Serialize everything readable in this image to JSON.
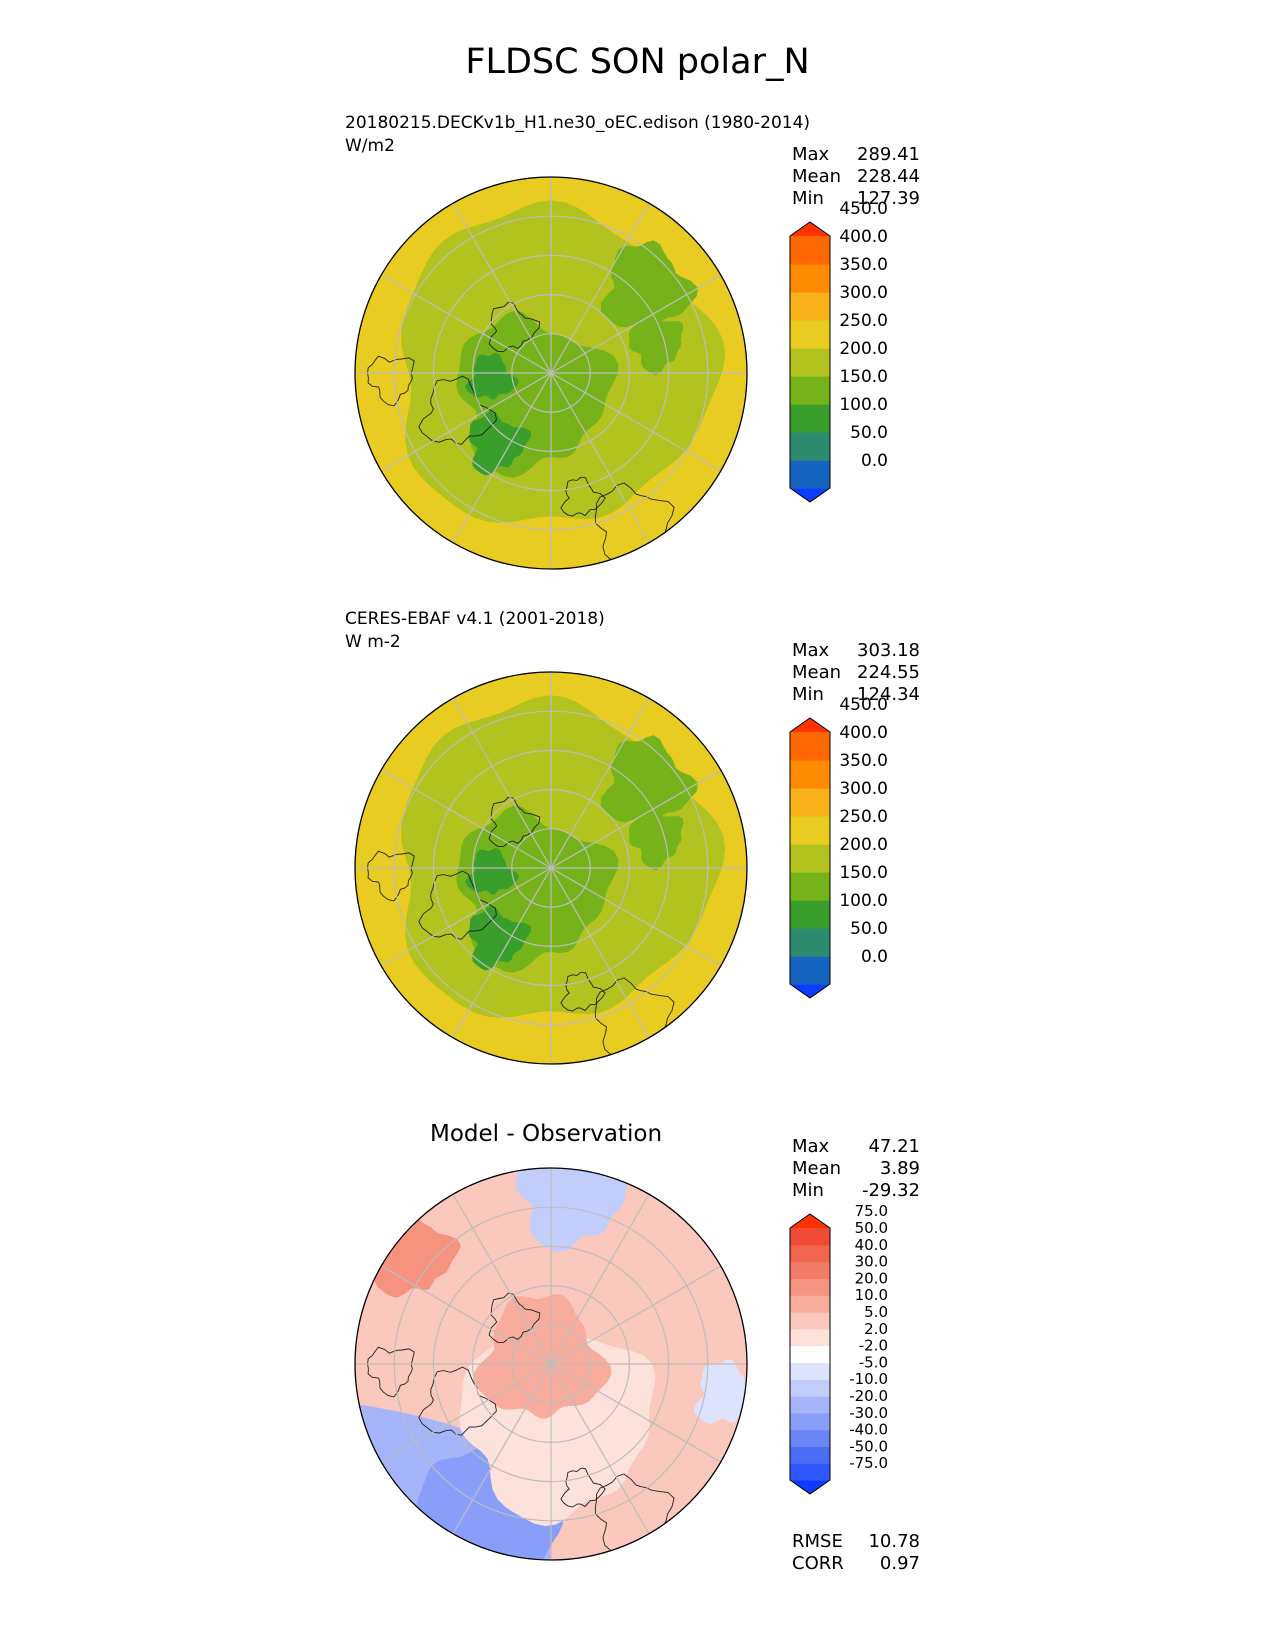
{
  "figure": {
    "title": "FLDSC SON polar_N"
  },
  "colors": {
    "field": [
      "#0a3dff",
      "#1565c0",
      "#2e8b6e",
      "#3a9e2c",
      "#76b21a",
      "#b2c21f",
      "#e8cc22",
      "#f9b21c",
      "#ff8c00",
      "#ff6800",
      "#ff3300"
    ],
    "diff": [
      "#0a3dff",
      "#2f56ff",
      "#4c6ef5",
      "#6a86f5",
      "#889ef8",
      "#a6b5fa",
      "#c3cdfc",
      "#dde3fd",
      "#ffffff",
      "#fde2dc",
      "#fbc8bd",
      "#f8ac9c",
      "#f6937f",
      "#f47b66",
      "#f2654f",
      "#f04b35",
      "#ff3300"
    ]
  },
  "chart_data": [
    {
      "type": "heatmap",
      "name": "model-panel",
      "title": "20180215.DECKv1b_H1.ne30_oEC.edison (1980-2014)",
      "units": "W/m2",
      "stats": {
        "max_label": "Max",
        "max": "289.41",
        "mean_label": "Mean",
        "mean": "228.44",
        "min_label": "Min",
        "min": "127.39"
      },
      "colorbar": {
        "levels": [
          0,
          50,
          100,
          150,
          200,
          250,
          300,
          350,
          400,
          450
        ],
        "tick_labels": [
          "0.0",
          "50.0",
          "100.0",
          "150.0",
          "200.0",
          "250.0",
          "300.0",
          "350.0",
          "400.0",
          "450.0"
        ]
      },
      "projection": "north-polar-stereographic"
    },
    {
      "type": "heatmap",
      "name": "obs-panel",
      "title": "CERES-EBAF v4.1 (2001-2018)",
      "units": "W m-2",
      "stats": {
        "max_label": "Max",
        "max": "303.18",
        "mean_label": "Mean",
        "mean": "224.55",
        "min_label": "Min",
        "min": "124.34"
      },
      "colorbar": {
        "levels": [
          0,
          50,
          100,
          150,
          200,
          250,
          300,
          350,
          400,
          450
        ],
        "tick_labels": [
          "0.0",
          "50.0",
          "100.0",
          "150.0",
          "200.0",
          "250.0",
          "300.0",
          "350.0",
          "400.0",
          "450.0"
        ]
      },
      "projection": "north-polar-stereographic"
    },
    {
      "type": "heatmap",
      "name": "diff-panel",
      "title": "Model - Observation",
      "stats": {
        "max_label": "Max",
        "max": "47.21",
        "mean_label": "Mean",
        "mean": "3.89",
        "min_label": "Min",
        "min": "-29.32",
        "rmse_label": "RMSE",
        "rmse": "10.78",
        "corr_label": "CORR",
        "corr": "0.97"
      },
      "colorbar": {
        "levels": [
          -75,
          -50,
          -40,
          -30,
          -20,
          -10,
          -5,
          -2,
          2,
          5,
          10,
          20,
          30,
          40,
          50,
          75
        ],
        "tick_labels": [
          "-75.0",
          "-50.0",
          "-40.0",
          "-30.0",
          "-20.0",
          "-10.0",
          "-5.0",
          "-2.0",
          "2.0",
          "5.0",
          "10.0",
          "20.0",
          "30.0",
          "40.0",
          "50.0",
          "75.0"
        ]
      },
      "projection": "north-polar-stereographic"
    }
  ]
}
